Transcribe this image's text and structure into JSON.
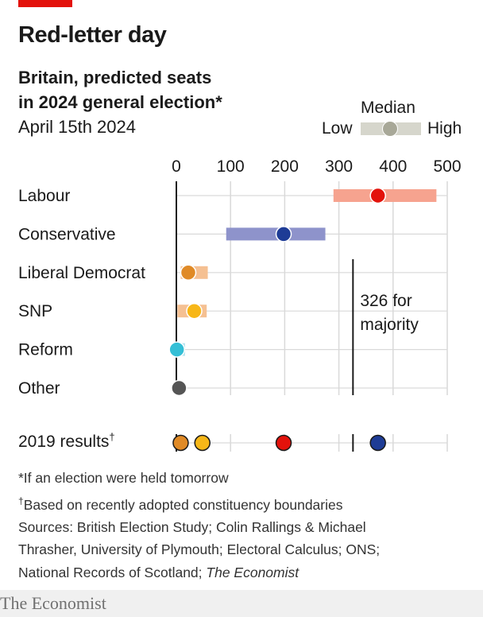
{
  "header": {
    "title": "Red-letter day",
    "subtitle_line1": "Britain, predicted seats",
    "subtitle_line2": "in 2024 general election*",
    "date": "April 15th 2024"
  },
  "legend": {
    "title": "Median",
    "low": "Low",
    "high": "High"
  },
  "chart_data": {
    "type": "dot-range",
    "x_ticks": [
      0,
      100,
      200,
      300,
      400,
      500
    ],
    "xlim": [
      0,
      500
    ],
    "grid": true,
    "majority": {
      "value": 326,
      "label_line1": "326 for",
      "label_line2": "majority"
    },
    "series": [
      {
        "name": "Labour",
        "low": 290,
        "median": 372,
        "high": 480,
        "color": "#e3120b",
        "range_color": "#f6a38f"
      },
      {
        "name": "Conservative",
        "low": 92,
        "median": 198,
        "high": 275,
        "color": "#1e3c96",
        "range_color": "#8e93cb"
      },
      {
        "name": "Liberal Democrat",
        "low": 8,
        "median": 22,
        "high": 58,
        "color": "#e08a26",
        "range_color": "#f5c092"
      },
      {
        "name": "SNP",
        "low": 2,
        "median": 33,
        "high": 56,
        "color": "#f7b718",
        "range_color": "#f5c092"
      },
      {
        "name": "Reform",
        "low": 0,
        "median": 1,
        "high": 16,
        "color": "#34bfd6",
        "range_color": "#b5e4ef"
      },
      {
        "name": "Other",
        "low": 0,
        "median": 5,
        "high": 5,
        "color": "#555555",
        "range_color": "#cccccc"
      }
    ],
    "results_2019": {
      "label": "2019 results",
      "label_mark": "†",
      "points": [
        {
          "party": "Labour",
          "value": 198,
          "color": "#e3120b"
        },
        {
          "party": "Conservative",
          "value": 372,
          "color": "#1e3c96"
        },
        {
          "party": "Liberal Democrat",
          "value": 8,
          "color": "#e08a26"
        },
        {
          "party": "SNP",
          "value": 48,
          "color": "#f7b718"
        }
      ]
    }
  },
  "notes": {
    "line1": "*If an election were held tomorrow",
    "line2_mark": "†",
    "line2": "Based on recently adopted constituency boundaries",
    "line3": "Sources: British Election Study; Colin Rallings & Michael",
    "line4": "Thrasher, University of Plymouth; Electoral Calculus; ONS;",
    "line5_prefix": "National Records of Scotland; ",
    "line5_italic": "The Economist"
  },
  "brand": "The Economist",
  "colors": {
    "accent": "#e3120b",
    "grid": "#d9d9d9"
  }
}
